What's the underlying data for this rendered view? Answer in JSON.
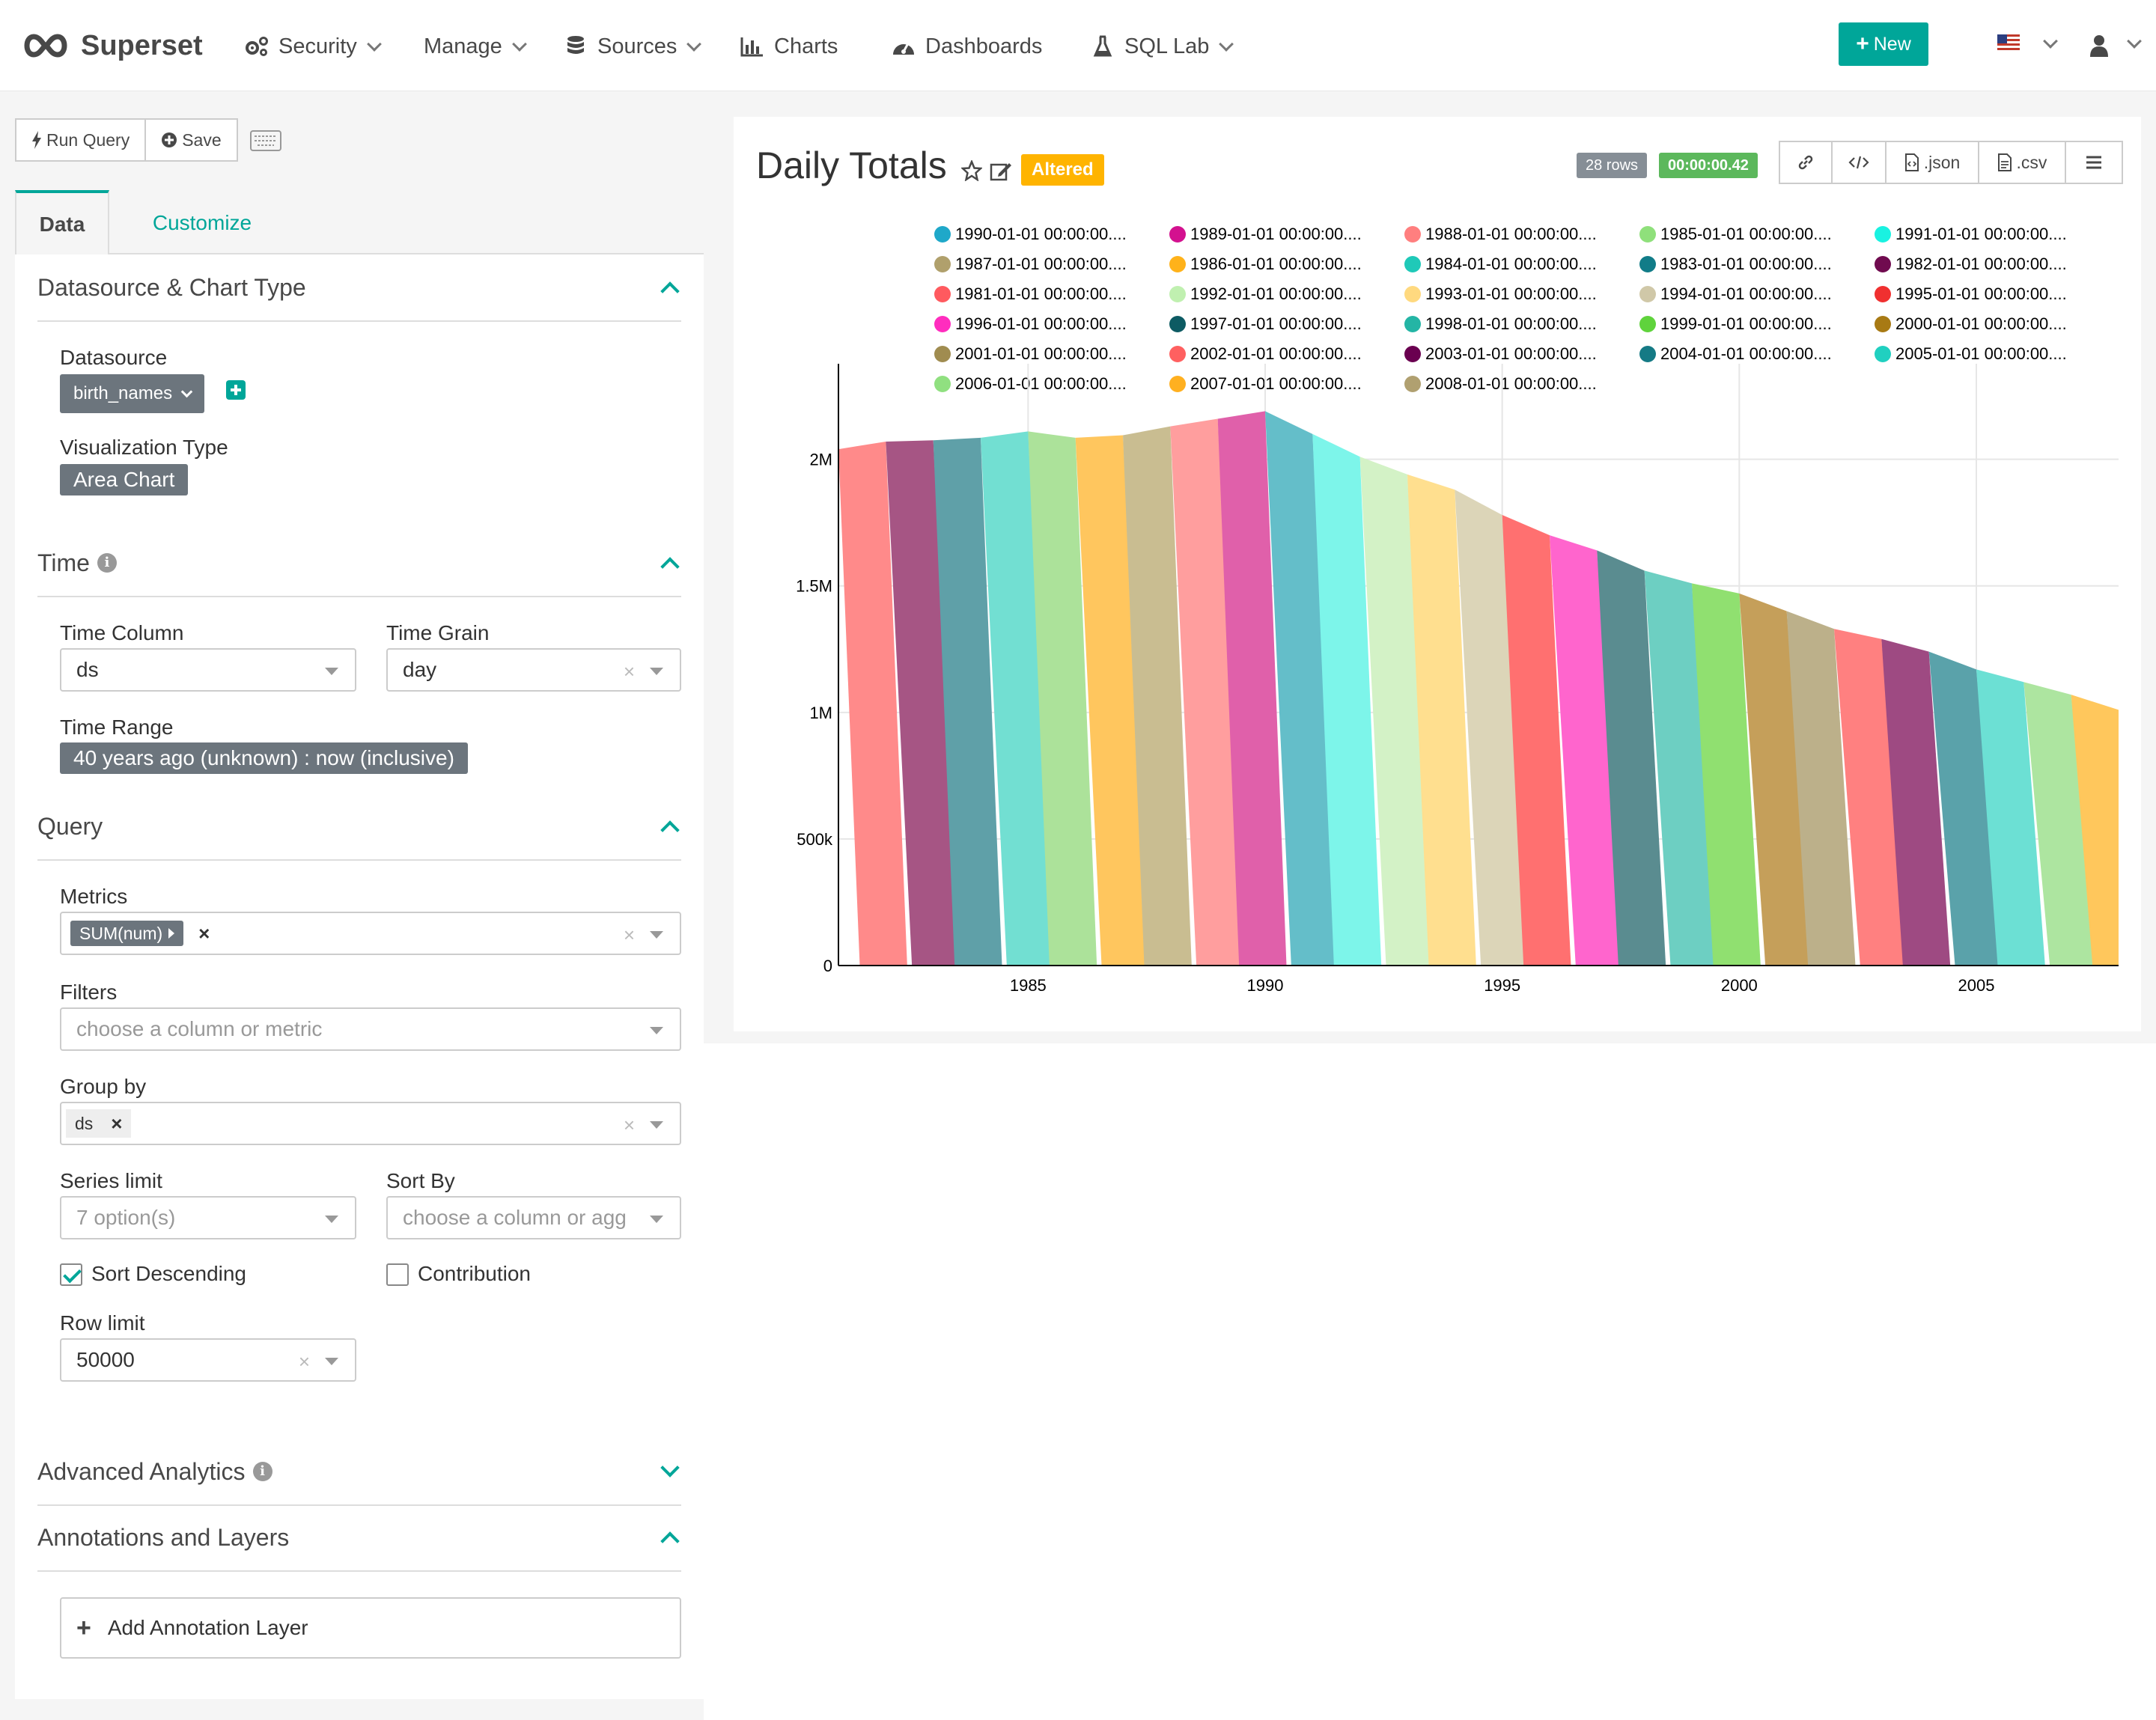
{
  "navbar": {
    "brand": "Superset",
    "items": [
      {
        "label": "Security",
        "icon": "cogs-icon",
        "dropdown": true
      },
      {
        "label": "Manage",
        "icon": "",
        "dropdown": true
      },
      {
        "label": "Sources",
        "icon": "database-icon",
        "dropdown": true
      },
      {
        "label": "Charts",
        "icon": "bar-chart-icon",
        "dropdown": false
      },
      {
        "label": "Dashboards",
        "icon": "dashboard-icon",
        "dropdown": false
      },
      {
        "label": "SQL Lab",
        "icon": "flask-icon",
        "dropdown": true
      }
    ],
    "new_button": "New",
    "accent": "#00a699"
  },
  "toolbar": {
    "run_query": "Run Query",
    "save": "Save"
  },
  "tabs": {
    "data": "Data",
    "customize": "Customize"
  },
  "sections": {
    "datasource": {
      "title": "Datasource & Chart Type",
      "datasource_label": "Datasource",
      "datasource_value": "birth_names",
      "viz_label": "Visualization Type",
      "viz_value": "Area Chart"
    },
    "time": {
      "title": "Time",
      "time_column_label": "Time Column",
      "time_column_value": "ds",
      "time_grain_label": "Time Grain",
      "time_grain_value": "day",
      "time_range_label": "Time Range",
      "time_range_value": "40 years ago (unknown) : now (inclusive)"
    },
    "query": {
      "title": "Query",
      "metrics_label": "Metrics",
      "metrics_tag": "SUM(num)",
      "filters_label": "Filters",
      "filters_placeholder": "choose a column or metric",
      "group_by_label": "Group by",
      "group_by_tag": "ds",
      "series_limit_label": "Series limit",
      "series_limit_placeholder": "7 option(s)",
      "sort_by_label": "Sort By",
      "sort_by_placeholder": "choose a column or agg",
      "sort_desc_label": "Sort Descending",
      "sort_desc_checked": true,
      "contribution_label": "Contribution",
      "contribution_checked": false,
      "row_limit_label": "Row limit",
      "row_limit_value": "50000"
    },
    "advanced": {
      "title": "Advanced Analytics"
    },
    "annotations": {
      "title": "Annotations and Layers",
      "add_button": "Add Annotation Layer"
    }
  },
  "chart": {
    "title": "Daily Totals",
    "altered_badge": "Altered",
    "rows_badge": "28 rows",
    "time_badge": "00:00:00.42",
    "json_label": ".json",
    "csv_label": ".csv"
  },
  "chart_data": {
    "type": "area",
    "title": "Daily Totals",
    "xlabel": "",
    "ylabel": "",
    "x": [
      1981,
      1982,
      1983,
      1984,
      1985,
      1986,
      1987,
      1988,
      1989,
      1990,
      1991,
      1992,
      1993,
      1994,
      1995,
      1996,
      1997,
      1998,
      1999,
      2000,
      2001,
      2002,
      2003,
      2004,
      2005,
      2006,
      2007,
      2008
    ],
    "y": [
      2040000,
      2070000,
      2075000,
      2085000,
      2110000,
      2085000,
      2095000,
      2130000,
      2160000,
      2190000,
      2100000,
      2010000,
      1940000,
      1880000,
      1780000,
      1700000,
      1640000,
      1560000,
      1510000,
      1470000,
      1400000,
      1330000,
      1290000,
      1240000,
      1170000,
      1120000,
      1070000,
      1010000
    ],
    "xticks": [
      "1985",
      "1990",
      "1995",
      "2000",
      "2005"
    ],
    "yticks": [
      "0",
      "500k",
      "1M",
      "1.5M",
      "2M"
    ],
    "ylim": [
      0,
      2200000
    ],
    "xlim": [
      1981,
      2008
    ],
    "grid": true,
    "legend_position": "top",
    "series": [
      {
        "name": "1990-01-01 00:00:00....",
        "color": "#1fa8c9"
      },
      {
        "name": "1989-01-01 00:00:00....",
        "color": "#d3118f"
      },
      {
        "name": "1988-01-01 00:00:00....",
        "color": "#ff7f7f"
      },
      {
        "name": "1985-01-01 00:00:00....",
        "color": "#8fe07b"
      },
      {
        "name": "1991-01-01 00:00:00....",
        "color": "#19f2e1"
      },
      {
        "name": "1987-01-01 00:00:00....",
        "color": "#b0a06c"
      },
      {
        "name": "1986-01-01 00:00:00....",
        "color": "#ffb21a"
      },
      {
        "name": "1984-01-01 00:00:00....",
        "color": "#1fc9b8"
      },
      {
        "name": "1983-01-01 00:00:00....",
        "color": "#117c88"
      },
      {
        "name": "1982-01-01 00:00:00....",
        "color": "#700b4f"
      },
      {
        "name": "1981-01-01 00:00:00....",
        "color": "#ff5a5f"
      },
      {
        "name": "1992-01-01 00:00:00....",
        "color": "#c0f0b0"
      },
      {
        "name": "1993-01-01 00:00:00....",
        "color": "#ffd97f"
      },
      {
        "name": "1994-01-01 00:00:00....",
        "color": "#d0c8a8"
      },
      {
        "name": "1995-01-01 00:00:00....",
        "color": "#f03030"
      },
      {
        "name": "1996-01-01 00:00:00....",
        "color": "#ff2dbe"
      },
      {
        "name": "1997-01-01 00:00:00....",
        "color": "#0d5b63"
      },
      {
        "name": "1998-01-01 00:00:00....",
        "color": "#24b5a5"
      },
      {
        "name": "1999-01-01 00:00:00....",
        "color": "#5fd33c"
      },
      {
        "name": "2000-01-01 00:00:00....",
        "color": "#a87a14"
      },
      {
        "name": "2001-01-01 00:00:00....",
        "color": "#a08c50"
      },
      {
        "name": "2002-01-01 00:00:00....",
        "color": "#ff6060"
      },
      {
        "name": "2003-01-01 00:00:00....",
        "color": "#6a0050"
      },
      {
        "name": "2004-01-01 00:00:00....",
        "color": "#157a85"
      },
      {
        "name": "2005-01-01 00:00:00....",
        "color": "#20d0c0"
      },
      {
        "name": "2006-01-01 00:00:00....",
        "color": "#90e080"
      },
      {
        "name": "2007-01-01 00:00:00....",
        "color": "#ffb020"
      },
      {
        "name": "2008-01-01 00:00:00....",
        "color": "#b0a070"
      }
    ],
    "band_colors": [
      "#ff8a8a",
      "#a65584",
      "#5fa0a8",
      "#72dfd2",
      "#ace29a",
      "#ffc65e",
      "#c9bd91",
      "#ff9e9e",
      "#e060aa",
      "#64bec9",
      "#7df5ea",
      "#d3f2c6",
      "#ffdf8f",
      "#dcd5b8",
      "#ff7070",
      "#ff65cd",
      "#5a8c90",
      "#6dcfc2",
      "#90e070",
      "#c59f5a",
      "#bcb08a",
      "#ff8080",
      "#9e4a82",
      "#5aa2aa",
      "#6ce0d4",
      "#ade5a0",
      "#ffc75c",
      "#c7ba8e"
    ]
  }
}
